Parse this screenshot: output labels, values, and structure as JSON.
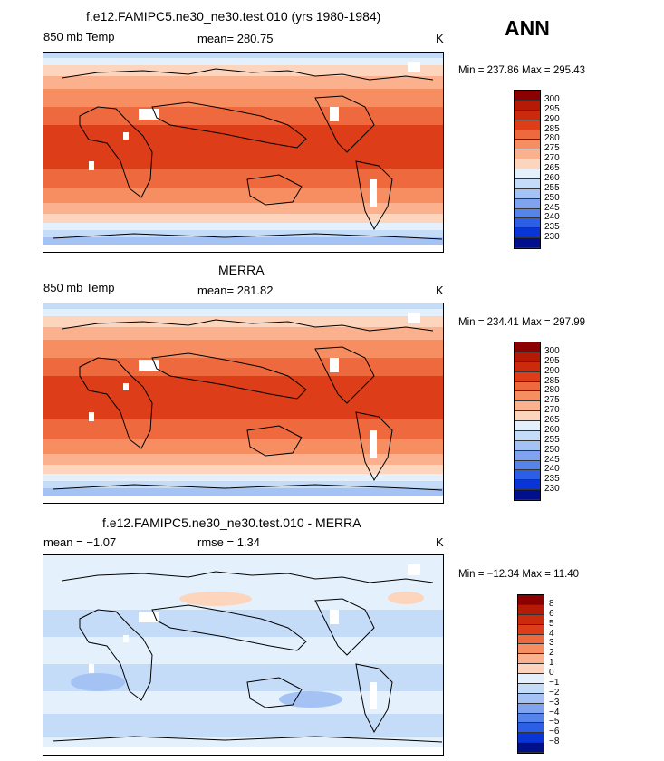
{
  "season": "ANN",
  "panels": [
    {
      "title": "f.e12.FAMIPC5.ne30_ne30.test.010 (yrs 1980-1984)",
      "left_label": "850 mb Temp",
      "center_label": "mean= 280.75",
      "right_label": "K",
      "minmax": "Min = 237.86 Max = 295.43"
    },
    {
      "title": "MERRA",
      "left_label": "850 mb Temp",
      "center_label": "mean= 281.82",
      "right_label": "K",
      "minmax": "Min = 234.41 Max = 297.99"
    },
    {
      "title": "f.e12.FAMIPC5.ne30_ne30.test.010 - MERRA",
      "left_label": "mean =   −1.07",
      "center_label": "rmse =    1.34",
      "right_label": "K",
      "minmax": "Min = −12.34 Max =  11.40"
    }
  ],
  "colorbars": {
    "absolute": {
      "labels": [
        "300",
        "295",
        "290",
        "285",
        "280",
        "275",
        "270",
        "265",
        "260",
        "255",
        "250",
        "245",
        "240",
        "235",
        "230"
      ],
      "colors": [
        "#8b0000",
        "#b41a06",
        "#cc2a0c",
        "#dd3d18",
        "#ee6a3e",
        "#f68e62",
        "#fbb18e",
        "#fdd5bd",
        "#e4f0fc",
        "#c5dcf8",
        "#a4c3f4",
        "#7fa3ee",
        "#5585ea",
        "#2c5ee6",
        "#0a35d6",
        "#000f8a"
      ]
    },
    "difference": {
      "labels": [
        "8",
        "6",
        "5",
        "4",
        "3",
        "2",
        "1",
        "0",
        "−1",
        "−2",
        "−3",
        "−4",
        "−5",
        "−6",
        "−8"
      ],
      "colors": [
        "#8b0000",
        "#b41a06",
        "#cc2a0c",
        "#dd3d18",
        "#ee6a3e",
        "#f68e62",
        "#fbb18e",
        "#fdd5bd",
        "#e4f0fc",
        "#c5dcf8",
        "#a4c3f4",
        "#7fa3ee",
        "#5585ea",
        "#2c5ee6",
        "#0a35d6",
        "#000f8a"
      ]
    }
  },
  "chart_data": [
    {
      "type": "heatmap",
      "title": "f.e12.FAMIPC5.ne30_ne30.test.010 (yrs 1980-1984)",
      "variable": "850 mb Temp",
      "units": "K",
      "mean": 280.75,
      "min": 237.86,
      "max": 295.43,
      "levels": [
        230,
        235,
        240,
        245,
        250,
        255,
        260,
        265,
        270,
        275,
        280,
        285,
        290,
        295,
        300
      ]
    },
    {
      "type": "heatmap",
      "title": "MERRA",
      "variable": "850 mb Temp",
      "units": "K",
      "mean": 281.82,
      "min": 234.41,
      "max": 297.99,
      "levels": [
        230,
        235,
        240,
        245,
        250,
        255,
        260,
        265,
        270,
        275,
        280,
        285,
        290,
        295,
        300
      ]
    },
    {
      "type": "heatmap",
      "title": "f.e12.FAMIPC5.ne30_ne30.test.010 - MERRA",
      "units": "K",
      "mean": -1.07,
      "rmse": 1.34,
      "min": -12.34,
      "max": 11.4,
      "levels": [
        -8,
        -6,
        -5,
        -4,
        -3,
        -2,
        -1,
        0,
        1,
        2,
        3,
        4,
        5,
        6,
        8
      ]
    }
  ]
}
